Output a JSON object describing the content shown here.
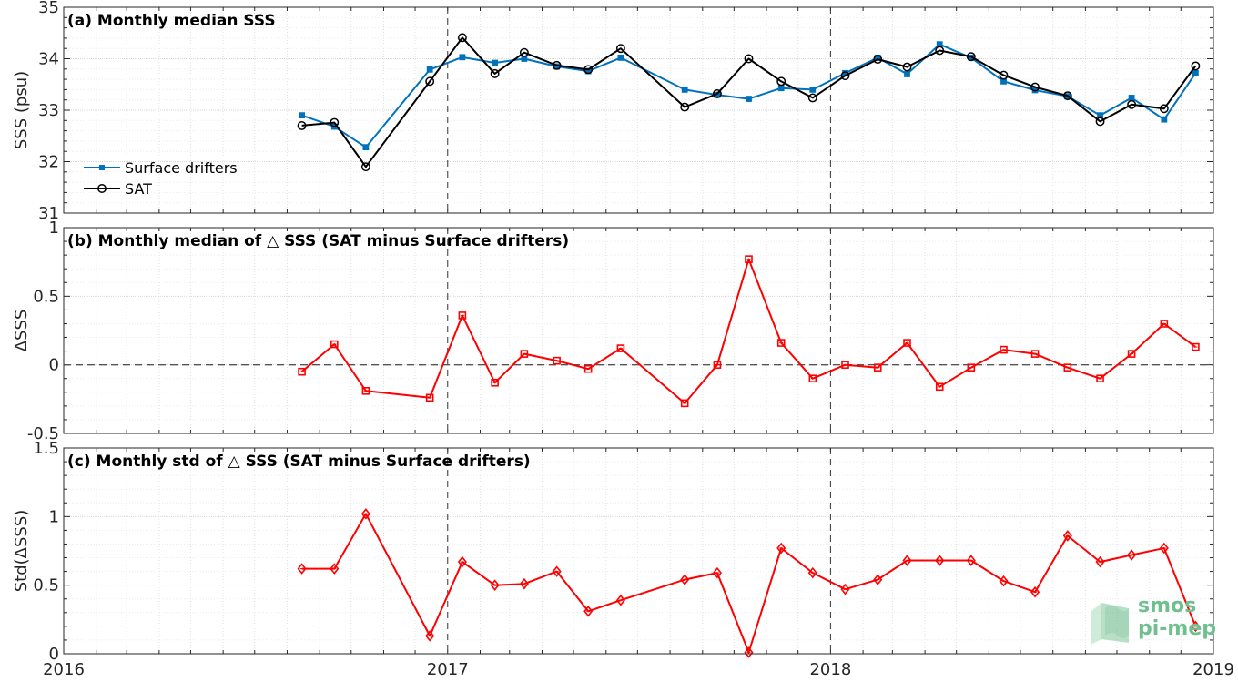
{
  "chart_data": [
    {
      "type": "line",
      "title": "(a) Monthly median SSS",
      "xlabel": "",
      "ylabel": "SSS (psu)",
      "xlim": [
        "2016-01-01",
        "2019-01-01"
      ],
      "ylim": [
        31,
        35
      ],
      "yticks": [
        "31",
        "32",
        "33",
        "34",
        "35"
      ],
      "legend_position": "bottom-left",
      "grid": true,
      "x": [
        "2016-08-15",
        "2016-09-15",
        "2016-10-15",
        "2016-12-15",
        "2017-01-15",
        "2017-02-15",
        "2017-03-15",
        "2017-04-15",
        "2017-05-15",
        "2017-06-15",
        "2017-08-15",
        "2017-09-15",
        "2017-10-15",
        "2017-11-15",
        "2017-12-15",
        "2018-01-15",
        "2018-02-15",
        "2018-03-15",
        "2018-04-15",
        "2018-05-15",
        "2018-06-15",
        "2018-07-15",
        "2018-08-15",
        "2018-09-15",
        "2018-10-15",
        "2018-11-15",
        "2018-12-15"
      ],
      "series": [
        {
          "name": "Surface drifters",
          "color": "#0072bd",
          "marker": "asterisk",
          "values": [
            32.9,
            32.68,
            32.28,
            33.79,
            34.03,
            33.92,
            34.0,
            33.85,
            33.76,
            34.02,
            33.4,
            33.3,
            33.22,
            33.43,
            33.4,
            33.72,
            34.02,
            33.7,
            34.28,
            34.02,
            33.56,
            33.39,
            33.27,
            32.9,
            33.24,
            32.82,
            33.72
          ]
        },
        {
          "name": "SAT",
          "color": "#000000",
          "marker": "circle",
          "values": [
            32.7,
            32.76,
            31.9,
            33.56,
            34.41,
            33.71,
            34.12,
            33.87,
            33.79,
            34.2,
            33.06,
            33.32,
            34.0,
            33.56,
            33.24,
            33.67,
            33.99,
            33.84,
            34.16,
            34.04,
            33.68,
            33.45,
            33.28,
            32.78,
            33.11,
            33.03,
            33.86
          ]
        }
      ]
    },
    {
      "type": "line",
      "title": "(b) Monthly median of △ SSS (SAT minus Surface drifters)",
      "xlabel": "",
      "ylabel": "ΔSSS",
      "xlim": [
        "2016-01-01",
        "2019-01-01"
      ],
      "ylim": [
        -0.5,
        1
      ],
      "yticks": [
        "-0.5",
        "0",
        "0.5",
        "1"
      ],
      "grid": true,
      "reference_line": 0,
      "x": [
        "2016-08-15",
        "2016-09-15",
        "2016-10-15",
        "2016-12-15",
        "2017-01-15",
        "2017-02-15",
        "2017-03-15",
        "2017-04-15",
        "2017-05-15",
        "2017-06-15",
        "2017-08-15",
        "2017-09-15",
        "2017-10-15",
        "2017-11-15",
        "2017-12-15",
        "2018-01-15",
        "2018-02-15",
        "2018-03-15",
        "2018-04-15",
        "2018-05-15",
        "2018-06-15",
        "2018-07-15",
        "2018-08-15",
        "2018-09-15",
        "2018-10-15",
        "2018-11-15",
        "2018-12-15"
      ],
      "series": [
        {
          "color": "#ff0000",
          "marker": "square",
          "values": [
            -0.05,
            0.15,
            -0.19,
            -0.24,
            0.36,
            -0.13,
            0.08,
            0.03,
            -0.03,
            0.12,
            -0.28,
            0.0,
            0.77,
            0.16,
            -0.1,
            0.0,
            -0.02,
            0.16,
            -0.16,
            -0.02,
            0.11,
            0.08,
            -0.02,
            -0.1,
            0.08,
            0.3,
            0.13
          ]
        }
      ]
    },
    {
      "type": "line",
      "title": "(c) Monthly std of △ SSS (SAT minus Surface drifters)",
      "xlabel": "",
      "ylabel": "Std(ΔSSS)",
      "xlim": [
        "2016-01-01",
        "2019-01-01"
      ],
      "ylim": [
        0,
        1.5
      ],
      "yticks": [
        "0",
        "0.5",
        "1",
        "1.5"
      ],
      "xticks": [
        "2016",
        "2017",
        "2018",
        "2019"
      ],
      "grid": true,
      "x": [
        "2016-08-15",
        "2016-09-15",
        "2016-10-15",
        "2016-12-15",
        "2017-01-15",
        "2017-02-15",
        "2017-03-15",
        "2017-04-15",
        "2017-05-15",
        "2017-06-15",
        "2017-08-15",
        "2017-09-15",
        "2017-10-15",
        "2017-11-15",
        "2017-12-15",
        "2018-01-15",
        "2018-02-15",
        "2018-03-15",
        "2018-04-15",
        "2018-05-15",
        "2018-06-15",
        "2018-07-15",
        "2018-08-15",
        "2018-09-15",
        "2018-10-15",
        "2018-11-15",
        "2018-12-15"
      ],
      "series": [
        {
          "color": "#ff0000",
          "marker": "diamond",
          "values": [
            0.62,
            0.62,
            1.02,
            0.13,
            0.67,
            0.5,
            0.51,
            0.6,
            0.31,
            0.39,
            0.54,
            0.59,
            0.01,
            0.77,
            0.59,
            0.47,
            0.54,
            0.68,
            0.68,
            0.68,
            0.53,
            0.45,
            0.86,
            0.67,
            0.72,
            0.77,
            0.2
          ]
        }
      ]
    }
  ],
  "logo": {
    "line1": "smos",
    "line2": "pi-mep"
  }
}
